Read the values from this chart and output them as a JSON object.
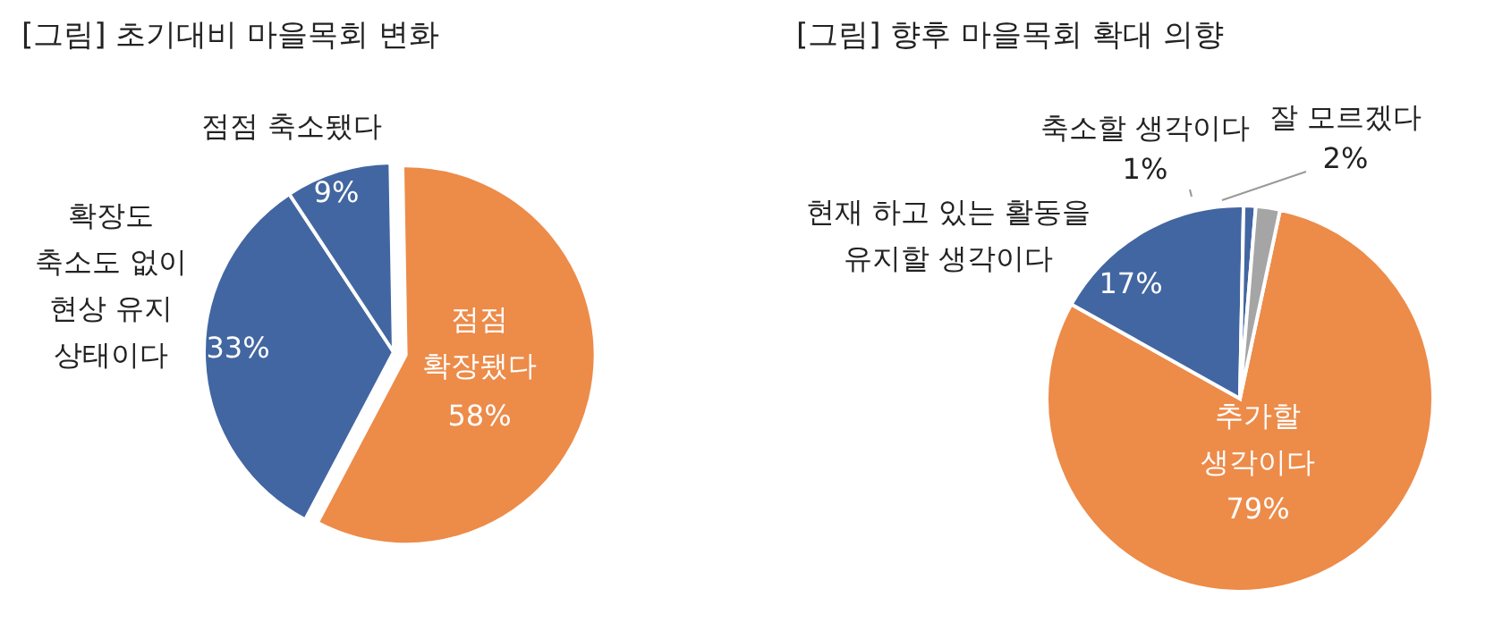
{
  "chart_data": [
    {
      "type": "pie",
      "title": "[그림] 초기대비 마을목회 변화",
      "categories": [
        "점점\n확장됐다",
        "확장도\n축소도 없이\n현상 유지\n상태이다",
        "점점 축소됐다"
      ],
      "values": [
        58,
        33,
        9
      ],
      "value_labels": [
        "58%",
        "33%",
        "9%"
      ],
      "colors": [
        "#ed8b49",
        "#4266a1",
        "#4266a1"
      ],
      "legend": false
    },
    {
      "type": "pie",
      "title": "[그림] 향후 마을목회 확대 의향",
      "categories": [
        "추가할\n생각이다",
        "현재 하고 있는 활동을\n유지할 생각이다",
        "축소할 생각이다",
        "잘 모르겠다"
      ],
      "values": [
        79,
        17,
        1,
        2
      ],
      "value_labels": [
        "79%",
        "17%",
        "1%",
        "2%"
      ],
      "colors": [
        "#ed8b49",
        "#4266a1",
        "#4266a1",
        "#a5a5a5"
      ],
      "legend": false
    }
  ]
}
